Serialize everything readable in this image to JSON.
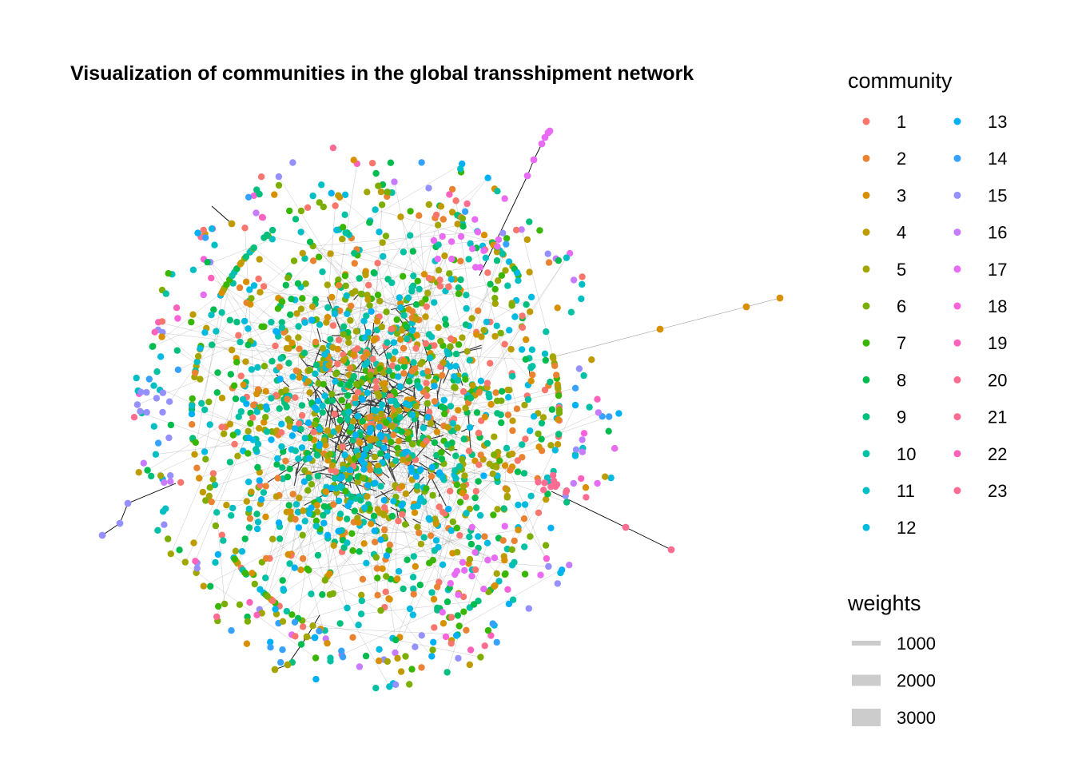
{
  "chart_data": {
    "type": "network",
    "title": "Visualization of communities in the global transshipment network",
    "legend": {
      "placement": "right",
      "community": {
        "title": "community",
        "entries": [
          {
            "label": "1",
            "color": "#F8766D"
          },
          {
            "label": "2",
            "color": "#EA8331"
          },
          {
            "label": "3",
            "color": "#D89000"
          },
          {
            "label": "4",
            "color": "#C09B00"
          },
          {
            "label": "5",
            "color": "#A3A500"
          },
          {
            "label": "6",
            "color": "#7CAE00"
          },
          {
            "label": "7",
            "color": "#39B600"
          },
          {
            "label": "8",
            "color": "#00BB4E"
          },
          {
            "label": "9",
            "color": "#00BF7D"
          },
          {
            "label": "10",
            "color": "#00C1A3"
          },
          {
            "label": "11",
            "color": "#00BFC4"
          },
          {
            "label": "12",
            "color": "#00BAE0"
          },
          {
            "label": "13",
            "color": "#00B0F6"
          },
          {
            "label": "14",
            "color": "#35A2FF"
          },
          {
            "label": "15",
            "color": "#9590FF"
          },
          {
            "label": "16",
            "color": "#C77CFF"
          },
          {
            "label": "17",
            "color": "#E76BF3"
          },
          {
            "label": "18",
            "color": "#FA62DB"
          },
          {
            "label": "19",
            "color": "#FF62BC"
          },
          {
            "label": "20",
            "color": "#FF6C91"
          },
          {
            "label": "21",
            "color": "#FF6C91"
          },
          {
            "label": "22",
            "color": "#FF62BC"
          },
          {
            "label": "23",
            "color": "#FF6C91"
          }
        ]
      },
      "weights": {
        "title": "weights",
        "entries": [
          {
            "label": "1000",
            "value": 1000
          },
          {
            "label": "2000",
            "value": 2000
          },
          {
            "label": "3000",
            "value": 3000
          }
        ]
      }
    },
    "edge_color": "#000000",
    "background": "#ffffff",
    "grid": false,
    "axes": false
  }
}
